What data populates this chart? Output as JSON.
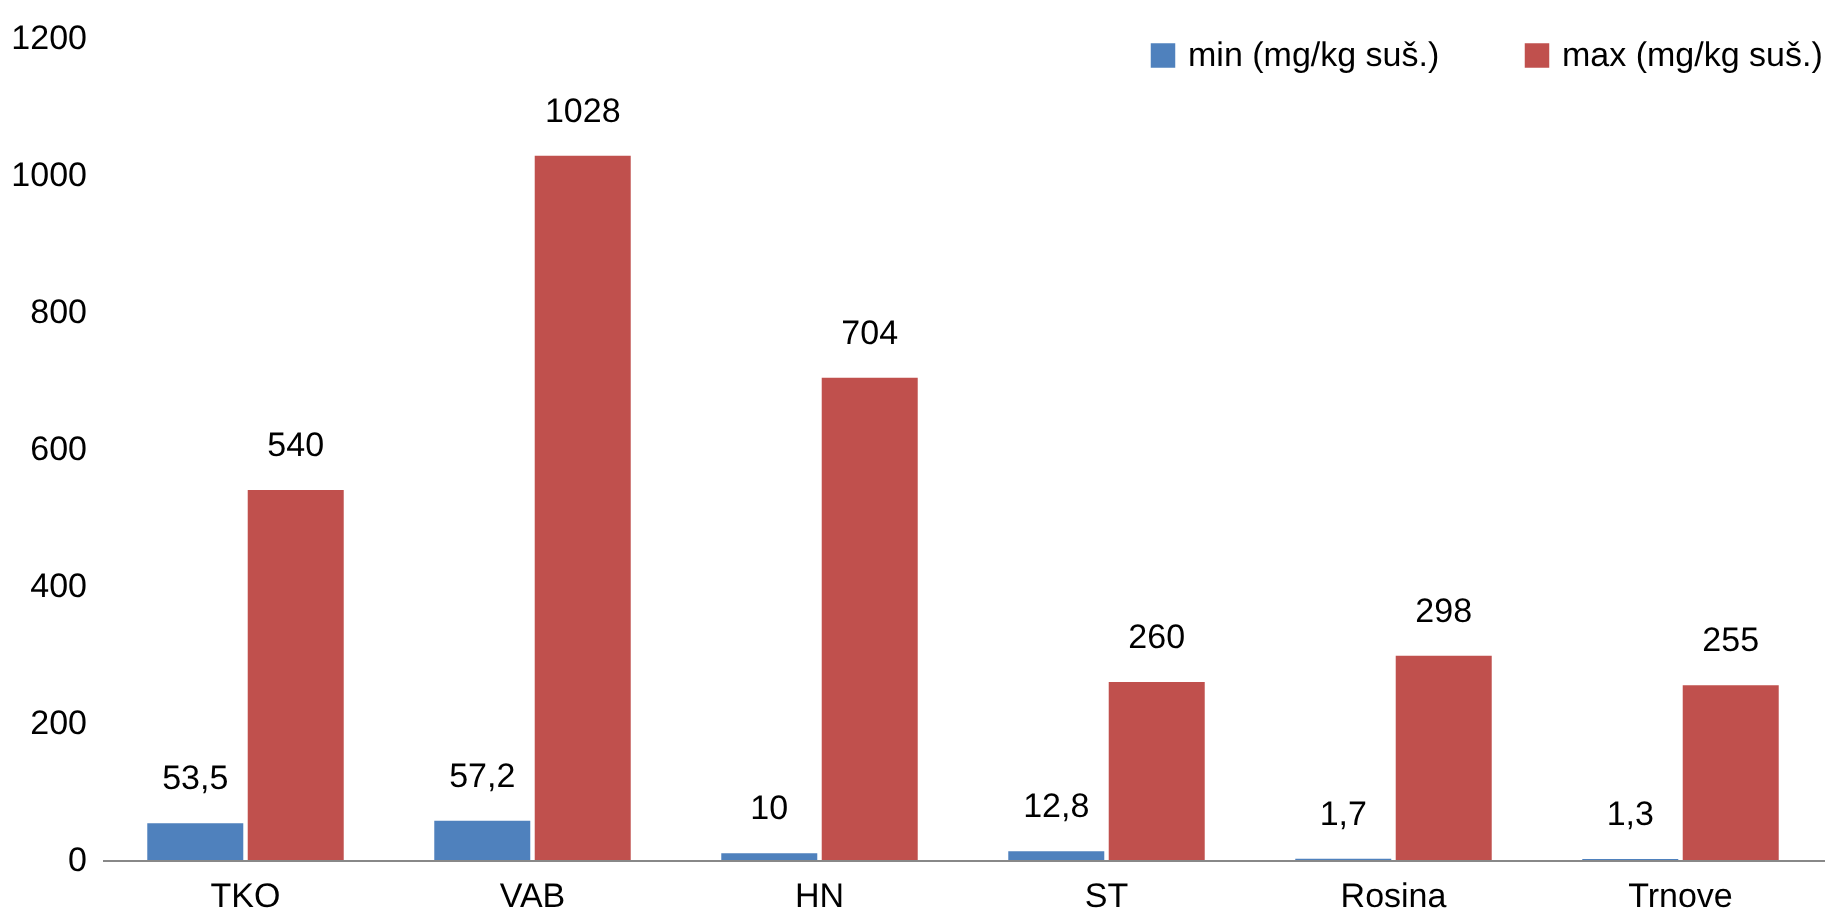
{
  "chart_data": {
    "type": "bar",
    "categories": [
      "TKO",
      "VAB",
      "HN",
      "ST",
      "Rosina",
      "Trnove"
    ],
    "series": [
      {
        "name": "min (mg/kg suš.)",
        "color": "#4f81bd",
        "values": [
          53.5,
          57.2,
          10,
          12.8,
          1.7,
          1.3
        ],
        "value_labels": [
          "53,5",
          "57,2",
          "10",
          "12,8",
          "1,7",
          "1,3"
        ]
      },
      {
        "name": "max (mg/kg suš.)",
        "color": "#c0504d",
        "values": [
          540,
          1028,
          704,
          260,
          298,
          255
        ],
        "value_labels": [
          "540",
          "1028",
          "704",
          "260",
          "298",
          "255"
        ]
      }
    ],
    "ylim": [
      0,
      1200
    ],
    "yticks": [
      0,
      200,
      400,
      600,
      800,
      1000,
      1200
    ],
    "grid": false,
    "legend": "top right"
  }
}
